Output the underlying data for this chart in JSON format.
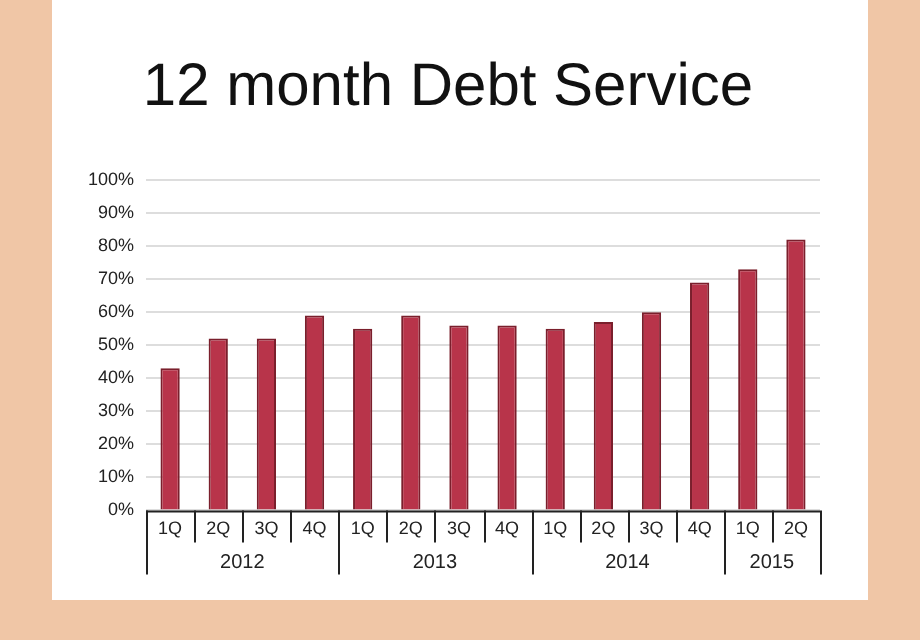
{
  "chart_data": {
    "type": "bar",
    "title": "12 month Debt Service",
    "categories": [
      "1Q",
      "2Q",
      "3Q",
      "4Q",
      "1Q",
      "2Q",
      "3Q",
      "4Q",
      "1Q",
      "2Q",
      "3Q",
      "4Q",
      "1Q",
      "2Q"
    ],
    "values": [
      43,
      52,
      52,
      59,
      55,
      59,
      56,
      56,
      55,
      57,
      60,
      69,
      73,
      82
    ],
    "color": "#b8344a",
    "ylim": [
      0,
      100
    ],
    "yticks": [
      {
        "value": 0,
        "label": "0%"
      },
      {
        "value": 10,
        "label": "10%"
      },
      {
        "value": 20,
        "label": "20%"
      },
      {
        "value": 30,
        "label": "30%"
      },
      {
        "value": 40,
        "label": "40%"
      },
      {
        "value": 50,
        "label": "50%"
      },
      {
        "value": 60,
        "label": "60%"
      },
      {
        "value": 70,
        "label": "70%"
      },
      {
        "value": 80,
        "label": "80%"
      },
      {
        "value": 90,
        "label": "90%"
      },
      {
        "value": 100,
        "label": "100%"
      }
    ],
    "grid": "y",
    "annotations": [
      "2012",
      "2013",
      "2014",
      "2015"
    ]
  }
}
